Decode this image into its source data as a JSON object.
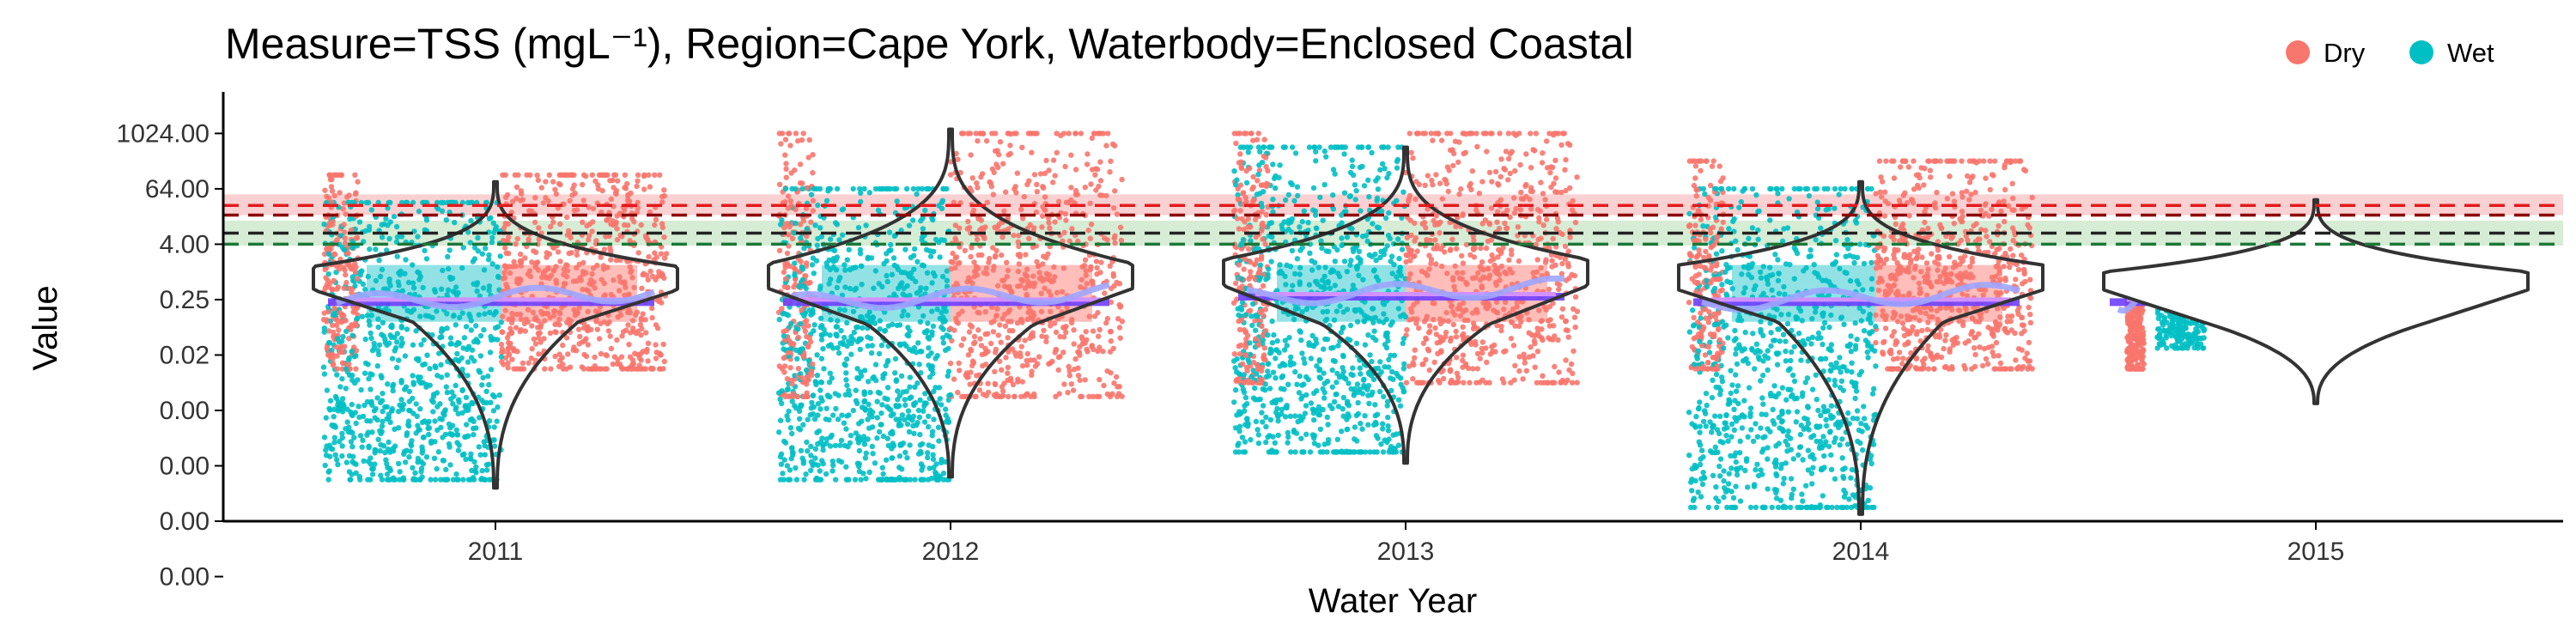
{
  "chart_data": {
    "type": "scatter",
    "title": "Measure=TSS (mgL⁻¹), Region=Cape York, Waterbody=Enclosed Coastal",
    "xlabel": "Water Year",
    "ylabel": "Value",
    "x_ticks": [
      "2011",
      "2012",
      "2013",
      "2014",
      "2015"
    ],
    "y_ticks": [
      "1024.00",
      "64.00",
      "4.00",
      "0.25",
      "0.02",
      "0.00",
      "0.00",
      "0.00",
      "0.00"
    ],
    "y_scale": "log2",
    "ylim_log2": [
      -18,
      13
    ],
    "grid": false,
    "legend_position": "top-right",
    "legend": [
      {
        "label": "Dry",
        "color": "#F8766D"
      },
      {
        "label": "Wet",
        "color": "#00BFC4"
      }
    ],
    "guideline_bands": [
      {
        "color": "#E41A1C",
        "center_log2": 4.8,
        "low_log2": 4.1,
        "high_log2": 5.6
      },
      {
        "color": "#33A02C",
        "center_log2": 2.8,
        "low_log2": 1.9,
        "high_log2": 3.7
      }
    ],
    "year_panels": [
      {
        "year": "2011",
        "dry_range": [
          -7,
          7
        ],
        "wet_range": [
          -15,
          5
        ],
        "dry_share": 0.52,
        "mean_log2": -2.0,
        "median_log2": -2.0,
        "violin": {
          "peak_log2": -1.3,
          "top_log2": 6.5,
          "bottom_log2": -15.6,
          "upper_shoulder_log2": 0.4,
          "lower_shoulder_log2": -3.6
        }
      },
      {
        "year": "2012",
        "dry_range": [
          -9,
          10
        ],
        "wet_range": [
          -15,
          6
        ],
        "dry_share": 0.5,
        "mean_log2": -2.0,
        "median_log2": -2.0,
        "violin": {
          "peak_log2": -1.2,
          "top_log2": 10.3,
          "bottom_log2": -14.8,
          "upper_shoulder_log2": 0.6,
          "lower_shoulder_log2": -3.8
        }
      },
      {
        "year": "2013",
        "dry_range": [
          -8,
          10
        ],
        "wet_range": [
          -13,
          9
        ],
        "dry_share": 0.5,
        "mean_log2": -1.6,
        "median_log2": -1.6,
        "violin": {
          "peak_log2": -1.0,
          "top_log2": 9.0,
          "bottom_log2": -13.8,
          "upper_shoulder_log2": 0.9,
          "lower_shoulder_log2": -3.8
        }
      },
      {
        "year": "2014",
        "dry_range": [
          -7,
          8
        ],
        "wet_range": [
          -17,
          6
        ],
        "dry_share": 0.55,
        "mean_log2": -2.0,
        "median_log2": -2.0,
        "violin": {
          "peak_log2": -1.3,
          "top_log2": 6.5,
          "bottom_log2": -17.5,
          "upper_shoulder_log2": 0.5,
          "lower_shoulder_log2": -3.6
        }
      },
      {
        "year": "2015",
        "dry_range": [
          -7,
          -1
        ],
        "wet_range": [
          -5.5,
          -0.5
        ],
        "dry_share": 0.5,
        "mean_log2": -2.0,
        "median_log2": -2.0,
        "violin": {
          "peak_log2": -1.3,
          "top_log2": 5.2,
          "bottom_log2": -9.5,
          "upper_shoulder_log2": 0.0,
          "lower_shoulder_log2": -4.0
        }
      }
    ]
  },
  "colors": {
    "dry": "#F8766D",
    "wet": "#00BFC4",
    "dry_shade": "#FFB3AE",
    "wet_shade": "#7FDDE0",
    "mean_line": "#6E40FF",
    "median_line": "#D291FF",
    "trend_line": "#9FA5FF",
    "violin_outline": "#333333",
    "guideline_red": "#E41A1C",
    "guideline_green": "#1B7837"
  }
}
